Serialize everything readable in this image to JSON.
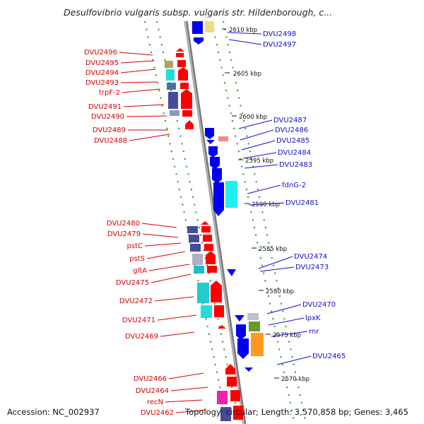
{
  "title": "Desulfovibrio vulgaris subsp. vulgaris str. Hildenborough, c...",
  "footer": {
    "accession": "Accession: NC_002937",
    "summary": "Topology: circular; Length: 3,570,858 bp; Genes: 3,465"
  },
  "colors": {
    "forward": "#ff0000",
    "reverse": "#0000ee",
    "backbone": "#909090",
    "label_left": "#d40000",
    "label_right": "#1010cc",
    "dots": "#2e8b2e"
  },
  "kbp_marks": [
    "2610 kbp",
    "2605 kbp",
    "2600 kbp",
    "2595 kbp",
    "2590 kbp",
    "2585 kbp",
    "2580 kbp",
    "2575 kbp",
    "2570 kbp"
  ],
  "left_labels": [
    "DVU2496",
    "DVU2495",
    "DVU2494",
    "DVU2493",
    "trpF-2",
    "DVU2491",
    "DVU2490",
    "DVU2489",
    "DVU2488",
    "DVU2480",
    "DVU2479",
    "pstC",
    "pstS",
    "gltA",
    "DVU2475",
    "DVU2472",
    "DVU2471",
    "DVU2469",
    "DVU2466",
    "DVU2464",
    "recN",
    "DVU2462"
  ],
  "right_labels": [
    "DVU2498",
    "DVU2497",
    "DVU2487",
    "DVU2486",
    "DVU2485",
    "DVU2484",
    "DVU2483",
    "fdnG-2",
    "DVU2481",
    "DVU2474",
    "DVU2473",
    "DVU2470",
    "lpxK",
    "rnr",
    "DVU2465"
  ]
}
